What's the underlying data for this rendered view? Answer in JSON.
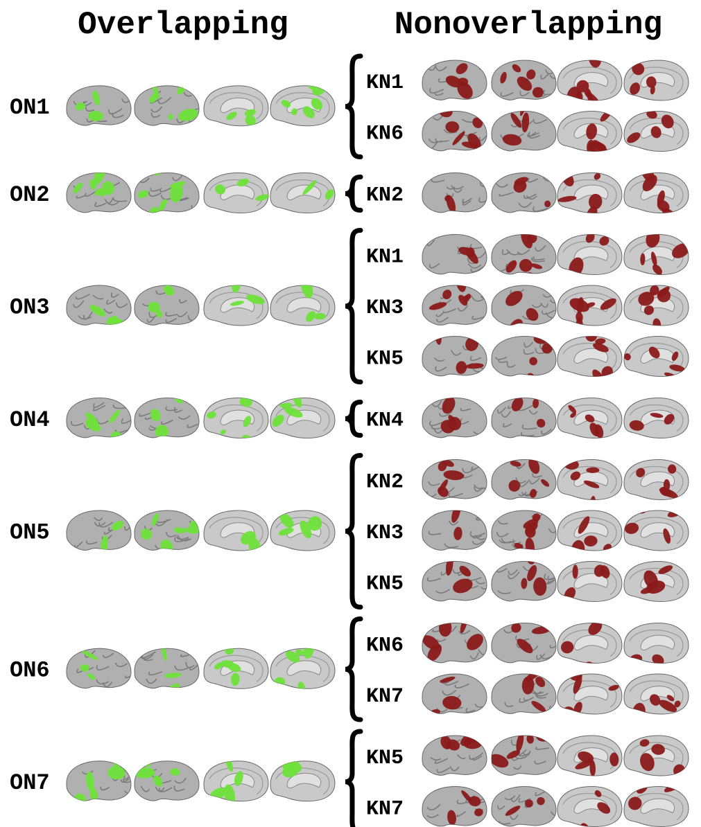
{
  "headers": {
    "left": "Overlapping",
    "right": "Nonoverlapping"
  },
  "groups": [
    {
      "label": "ON1",
      "matches": [
        "KN1",
        "KN6"
      ]
    },
    {
      "label": "ON2",
      "matches": [
        "KN2"
      ]
    },
    {
      "label": "ON3",
      "matches": [
        "KN1",
        "KN3",
        "KN5"
      ]
    },
    {
      "label": "ON4",
      "matches": [
        "KN4"
      ]
    },
    {
      "label": "ON5",
      "matches": [
        "KN2",
        "KN3",
        "KN5"
      ]
    },
    {
      "label": "ON6",
      "matches": [
        "KN6",
        "KN7"
      ]
    },
    {
      "label": "ON7",
      "matches": [
        "KN5",
        "KN7"
      ]
    }
  ]
}
